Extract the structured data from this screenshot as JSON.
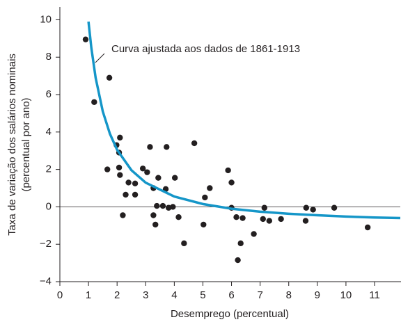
{
  "chart_data": {
    "type": "scatter",
    "xlabel": "Desemprego (percentual)",
    "ylabel": [
      "Taxa de variação dos salários nominais",
      "(percentual por ano)"
    ],
    "annotation": "Curva ajustada aos dados de 1861-1913",
    "xlim": [
      0,
      11.9
    ],
    "ylim": [
      -4,
      10.7
    ],
    "xticks": [
      0,
      1,
      2,
      3,
      4,
      5,
      6,
      7,
      8,
      9,
      10,
      11
    ],
    "yticks": [
      {
        "value": -4,
        "label": "−4"
      },
      {
        "value": -2,
        "label": "−2"
      },
      0,
      2,
      4,
      6,
      8,
      10
    ],
    "zero_line": true,
    "series": [
      {
        "type": "scatter",
        "color": "#231f20",
        "x": [
          0.9,
          1.2,
          1.73,
          1.66,
          1.98,
          2.1,
          2.07,
          2.07,
          2.1,
          2.2,
          2.3,
          2.4,
          2.63,
          2.63,
          2.9,
          3.05,
          3.15,
          3.27,
          3.27,
          3.34,
          3.39,
          3.44,
          3.6,
          3.7,
          3.73,
          3.8,
          3.95,
          4.02,
          4.15,
          4.34,
          4.7,
          5.02,
          5.07,
          5.24,
          5.88,
          6.0,
          6.0,
          6.17,
          6.22,
          6.32,
          6.39,
          6.78,
          7.1,
          7.15,
          7.32,
          7.73,
          8.61,
          8.59,
          8.85,
          9.59,
          10.76
        ],
        "y": [
          8.95,
          5.6,
          6.9,
          2.0,
          3.3,
          3.7,
          2.9,
          2.1,
          1.7,
          -0.45,
          0.65,
          1.3,
          0.65,
          1.25,
          2.05,
          1.85,
          3.2,
          1.0,
          -0.45,
          -0.95,
          0.05,
          1.55,
          0.05,
          0.95,
          3.2,
          -0.05,
          0.0,
          1.55,
          -0.55,
          -1.95,
          3.4,
          -0.95,
          0.5,
          1.0,
          1.95,
          1.3,
          -0.05,
          -0.55,
          -2.85,
          -1.95,
          -0.6,
          -1.45,
          -0.65,
          -0.05,
          -0.75,
          -0.65,
          -0.05,
          -0.75,
          -0.15,
          -0.05,
          -1.1
        ]
      },
      {
        "type": "line",
        "color": "#1596c8",
        "x": [
          1,
          1.1,
          1.25,
          1.5,
          1.75,
          2,
          2.5,
          3,
          4,
          5,
          6,
          7,
          8,
          9,
          10,
          11,
          11.9
        ],
        "y": [
          9.9,
          8.5,
          6.9,
          5.1,
          3.9,
          3.05,
          1.96,
          1.29,
          0.55,
          0.15,
          -0.1,
          -0.26,
          -0.37,
          -0.45,
          -0.52,
          -0.57,
          -0.6
        ]
      }
    ]
  }
}
